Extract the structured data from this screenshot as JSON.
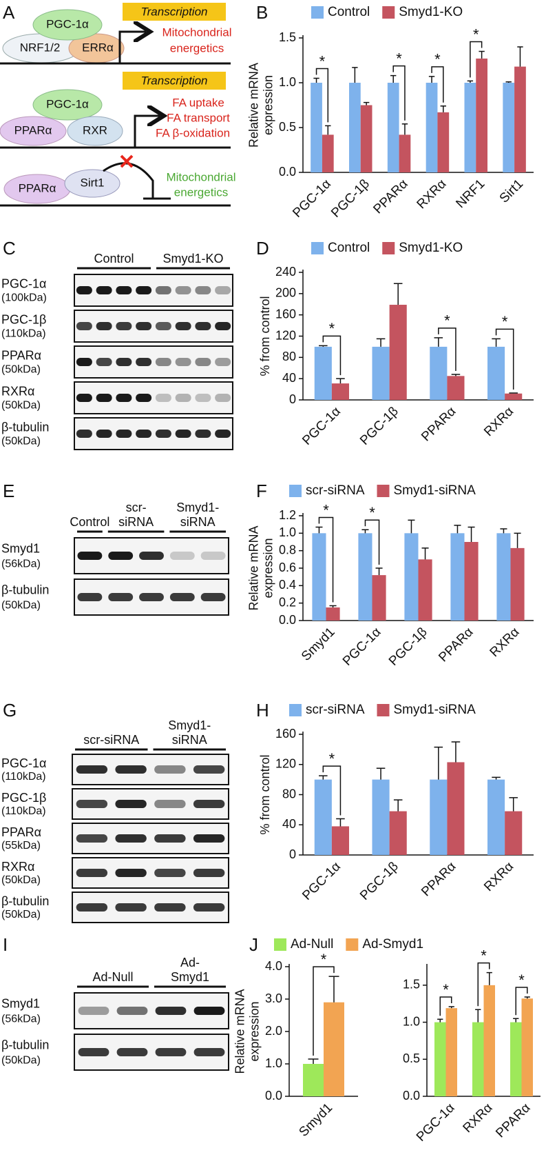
{
  "panel_labels": [
    "A",
    "B",
    "C",
    "D",
    "E",
    "F",
    "G",
    "H",
    "I",
    "J"
  ],
  "diagram": {
    "transcription": [
      "Transcription",
      "Transcription"
    ],
    "row1": {
      "proteins": [
        "PGC-1α",
        "NRF1/2",
        "ERRα"
      ],
      "target": [
        "Mitochondrial",
        "energetics"
      ]
    },
    "row2": {
      "proteins": [
        "PGC-1α",
        "PPARα",
        "RXR"
      ],
      "target": [
        "FA uptake",
        "FA transport",
        "FA β-oxidation"
      ]
    },
    "row3": {
      "proteins": [
        "PPARα",
        "Sirt1"
      ],
      "target": [
        "Mitochondrial",
        "energetics"
      ]
    }
  },
  "blots": {
    "C": {
      "groups": [
        [
          "Control"
        ],
        [
          "Smyd1-KO"
        ]
      ],
      "rows": [
        [
          "PGC-1α",
          "(100kDa)"
        ],
        [
          "PGC-1β",
          "(110kDa)"
        ],
        [
          "PPARα",
          "(50kDa)"
        ],
        [
          "RXRα",
          "(50kDa)"
        ],
        [
          "β-tubulin",
          "(50kDa)"
        ]
      ]
    },
    "E": {
      "groups": [
        [
          "Control"
        ],
        [
          "scr-",
          "siRNA"
        ],
        [
          "Smyd1-",
          "siRNA"
        ]
      ],
      "rows": [
        [
          "Smyd1",
          "(56kDa)"
        ],
        [
          "β-tubulin",
          "(50kDa)"
        ]
      ]
    },
    "G": {
      "groups": [
        [
          "scr-siRNA"
        ],
        [
          "Smyd1-",
          "siRNA"
        ]
      ],
      "rows": [
        [
          "PGC-1α",
          "(110kDa)"
        ],
        [
          "PGC-1β",
          "(110kDa)"
        ],
        [
          "PPARα",
          "(55kDa)"
        ],
        [
          "RXRα",
          "(50kDa)"
        ],
        [
          "β-tubulin",
          "(50kDa)"
        ]
      ]
    },
    "I": {
      "groups": [
        [
          "Ad-Null"
        ],
        [
          "Ad-",
          "Smyd1"
        ]
      ],
      "rows": [
        [
          "Smyd1",
          "(56kDa)"
        ],
        [
          "β-tubulin",
          "(50kDa)"
        ]
      ]
    }
  },
  "chart_data": [
    {
      "type": "bar",
      "ylabel": [
        "Relative mRNA",
        "expression"
      ],
      "categories": [
        "PGC-1α",
        "PGC-1β",
        "PPARα",
        "RXRα",
        "NRF1",
        "Sirt1"
      ],
      "series": [
        {
          "name": "Control",
          "color": "#7eb2ec",
          "values": [
            1,
            1,
            1,
            1,
            1,
            1
          ],
          "errors": [
            0.05,
            0.17,
            0.08,
            0.07,
            0.02,
            0.01
          ]
        },
        {
          "name": "Smyd1-KO",
          "color": "#c4545f",
          "values": [
            0.42,
            0.75,
            0.42,
            0.67,
            1.27,
            1.18
          ],
          "errors": [
            0.1,
            0.03,
            0.12,
            0.07,
            0.08,
            0.22
          ]
        }
      ],
      "ylim": [
        0,
        1.5
      ],
      "yticks": [
        {
          "value": 0,
          "label": "0.0"
        },
        0.5,
        {
          "value": 1,
          "label": "1.0"
        },
        1.5
      ],
      "significance": [
        {
          "label": "*",
          "category": "PGC-1α"
        },
        {
          "label": "*",
          "category": "PPARα"
        },
        {
          "label": "*",
          "category": "RXRα"
        },
        {
          "label": "*",
          "category": "NRF1"
        }
      ]
    },
    {
      "type": "bar",
      "ylabel": [
        "% from control"
      ],
      "categories": [
        "PGC-1α",
        "PGC-1β",
        "PPARα",
        "RXRα"
      ],
      "series": [
        {
          "name": "Control",
          "color": "#7eb2ec",
          "values": [
            100,
            100,
            100,
            100
          ],
          "errors": [
            2,
            15,
            17,
            15
          ]
        },
        {
          "name": "Smyd1-KO",
          "color": "#c4545f",
          "values": [
            31,
            179,
            45,
            12
          ],
          "errors": [
            9,
            40,
            3,
            1
          ]
        }
      ],
      "ylim": [
        0,
        240
      ],
      "yticks": [
        0,
        40,
        80,
        120,
        160,
        200,
        240
      ],
      "significance": [
        {
          "label": "*",
          "category": "PGC-1α"
        },
        {
          "label": "*",
          "category": "PPARα"
        },
        {
          "label": "*",
          "category": "RXRα"
        }
      ]
    },
    {
      "type": "bar",
      "ylabel": [
        "Relative mRNA",
        "expression"
      ],
      "categories": [
        "Smyd1",
        "PGC-1α",
        "PGC-1β",
        "PPARα",
        "RXRα"
      ],
      "series": [
        {
          "name": "scr-siRNA",
          "color": "#7eb2ec",
          "values": [
            1,
            1,
            1,
            1,
            1
          ],
          "errors": [
            0.07,
            0.04,
            0.15,
            0.09,
            0.05
          ]
        },
        {
          "name": "Smyd1-siRNA",
          "color": "#c4545f",
          "values": [
            0.15,
            0.52,
            0.7,
            0.9,
            0.83
          ],
          "errors": [
            0.02,
            0.08,
            0.13,
            0.17,
            0.17
          ]
        }
      ],
      "ylim": [
        0,
        1.2
      ],
      "yticks": [
        {
          "value": 0,
          "label": "0.0"
        },
        0.2,
        0.4,
        0.6,
        0.8,
        {
          "value": 1,
          "label": "1.0"
        },
        1.2
      ],
      "significance": [
        {
          "label": "*",
          "category": "Smyd1"
        },
        {
          "label": "*",
          "category": "PGC-1α"
        }
      ]
    },
    {
      "type": "bar",
      "ylabel": [
        "% from control"
      ],
      "categories": [
        "PGC-1α",
        "PGC-1β",
        "PPARα",
        "RXRα"
      ],
      "series": [
        {
          "name": "scr-siRNA",
          "color": "#7eb2ec",
          "values": [
            100,
            100,
            100,
            100
          ],
          "errors": [
            5,
            15,
            43,
            3
          ]
        },
        {
          "name": "Smyd1-siRNA",
          "color": "#c4545f",
          "values": [
            38,
            58,
            123,
            58
          ],
          "errors": [
            10,
            15,
            27,
            18
          ]
        }
      ],
      "ylim": [
        0,
        160
      ],
      "yticks": [
        0,
        40,
        80,
        120,
        160
      ],
      "significance": [
        {
          "label": "*",
          "category": "PGC-1α"
        }
      ]
    },
    {
      "type": "bar",
      "ylabel": [
        "Relative mRNA",
        "expression"
      ],
      "categories": [
        "Smyd1"
      ],
      "series": [
        {
          "name": "Ad-Null",
          "color": "#9ee85a",
          "values": [
            1
          ],
          "errors": [
            0.15
          ]
        },
        {
          "name": "Ad-Smyd1",
          "color": "#f2a452",
          "values": [
            2.9
          ],
          "errors": [
            0.8
          ]
        }
      ],
      "ylim": [
        0,
        4
      ],
      "yticks": [
        {
          "value": 0,
          "label": "0.0"
        },
        {
          "value": 1,
          "label": "1.0"
        },
        {
          "value": 2,
          "label": "2.0"
        },
        {
          "value": 3,
          "label": "3.0"
        },
        {
          "value": 4,
          "label": "4.0"
        }
      ],
      "significance": [
        {
          "label": "*",
          "category": "Smyd1"
        }
      ]
    },
    {
      "type": "bar",
      "categories": [
        "PGC-1α",
        "RXRα",
        "PPARα"
      ],
      "series": [
        {
          "color": "#9ee85a",
          "values": [
            1,
            1,
            1
          ],
          "errors": [
            0.04,
            0.17,
            0.05
          ]
        },
        {
          "color": "#f2a452",
          "values": [
            1.19,
            1.5,
            1.32
          ],
          "errors": [
            0.02,
            0.17,
            0.02
          ]
        }
      ],
      "ylim": [
        0,
        1.75
      ],
      "yticks": [
        {
          "value": 0,
          "label": "0.0"
        },
        0.5,
        {
          "value": 1,
          "label": "1.0"
        },
        1.5
      ],
      "significance": [
        {
          "label": "*",
          "category": "PGC-1α"
        },
        {
          "label": "*",
          "category": "RXRα"
        },
        {
          "label": "*",
          "category": "PPARα"
        }
      ]
    }
  ]
}
